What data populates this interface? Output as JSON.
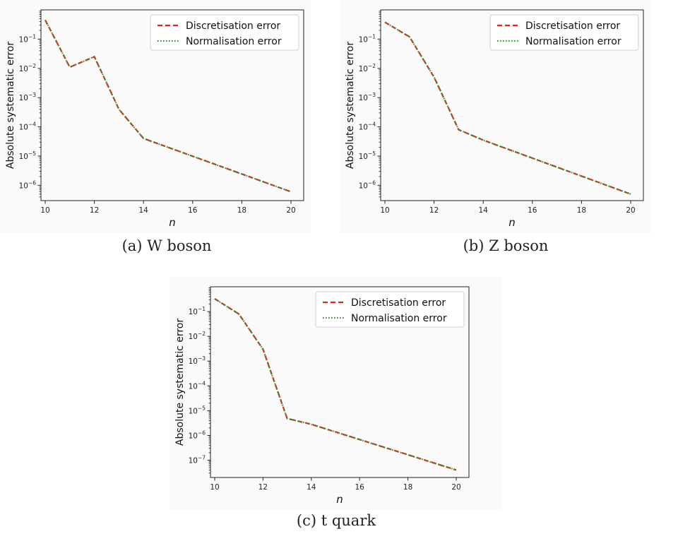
{
  "figure": {
    "captions": [
      "(a) W boson",
      "(b) Z boson",
      "(c) t quark"
    ]
  },
  "colors": {
    "discretisation": "#e8201f",
    "normalisation": "#2e9a2e",
    "frame": "#222222",
    "panel_background": "#fafafa"
  },
  "chart_data": [
    {
      "type": "line",
      "caption": "(a) W boson",
      "xlabel": "n",
      "ylabel": "Absolute systematic error",
      "y_scale": "log",
      "xlim": [
        10,
        20
      ],
      "ylim": [
        3e-07,
        1.0
      ],
      "xticks": [
        10,
        12,
        14,
        16,
        18,
        20
      ],
      "yticks": [
        1e-06,
        1e-05,
        0.0001,
        0.001,
        0.01,
        0.1
      ],
      "legend_position": "top-right",
      "grid": false,
      "x": [
        10,
        11,
        12,
        13,
        14,
        20
      ],
      "series": [
        {
          "name": "Discretisation error",
          "style": "dashed",
          "values": [
            0.45,
            0.011,
            0.025,
            0.0004,
            4e-05,
            6e-07
          ]
        },
        {
          "name": "Normalisation error",
          "style": "dotted",
          "values": [
            0.45,
            0.011,
            0.025,
            0.0004,
            4e-05,
            6e-07
          ]
        }
      ]
    },
    {
      "type": "line",
      "caption": "(b) Z boson",
      "xlabel": "n",
      "ylabel": "Absolute systematic error",
      "y_scale": "log",
      "xlim": [
        10,
        20
      ],
      "ylim": [
        3e-07,
        1.0
      ],
      "xticks": [
        10,
        12,
        14,
        16,
        18,
        20
      ],
      "yticks": [
        1e-06,
        1e-05,
        0.0001,
        0.001,
        0.01,
        0.1
      ],
      "legend_position": "top-right",
      "grid": false,
      "x": [
        10,
        11,
        12,
        13,
        14,
        20
      ],
      "series": [
        {
          "name": "Discretisation error",
          "style": "dashed",
          "values": [
            0.38,
            0.12,
            0.005,
            8e-05,
            3.5e-05,
            5e-07
          ]
        },
        {
          "name": "Normalisation error",
          "style": "dotted",
          "values": [
            0.38,
            0.12,
            0.005,
            8e-05,
            3.5e-05,
            5e-07
          ]
        }
      ]
    },
    {
      "type": "line",
      "caption": "(c) t quark",
      "xlabel": "n",
      "ylabel": "Absolute systematic error",
      "y_scale": "log",
      "xlim": [
        10,
        20
      ],
      "ylim": [
        2e-08,
        1.0
      ],
      "xticks": [
        10,
        12,
        14,
        16,
        18,
        20
      ],
      "yticks": [
        1e-07,
        1e-06,
        1e-05,
        0.0001,
        0.001,
        0.01,
        0.1
      ],
      "legend_position": "top-right",
      "grid": false,
      "x": [
        10,
        11,
        12,
        13,
        14,
        20
      ],
      "series": [
        {
          "name": "Discretisation error",
          "style": "dashed",
          "values": [
            0.33,
            0.08,
            0.003,
            4.8e-06,
            2.8e-06,
            4e-08
          ]
        },
        {
          "name": "Normalisation error",
          "style": "dotted",
          "values": [
            0.33,
            0.08,
            0.003,
            4.8e-06,
            2.8e-06,
            4e-08
          ]
        }
      ]
    }
  ]
}
